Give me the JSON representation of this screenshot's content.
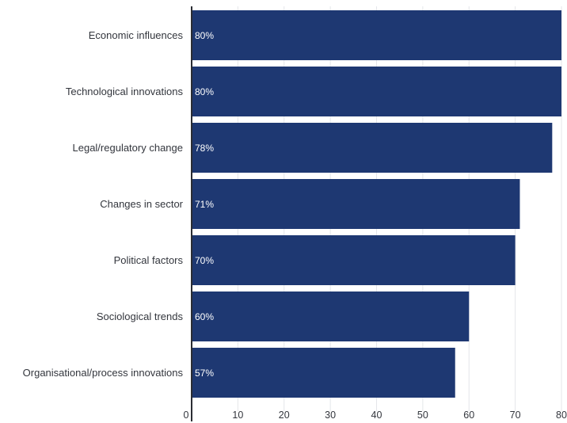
{
  "chart_data": {
    "type": "bar",
    "orientation": "horizontal",
    "categories": [
      "Economic influences",
      "Technological innovations",
      "Legal/regulatory change",
      "Changes in sector",
      "Political factors",
      "Sociological trends",
      "Organisational/process innovations"
    ],
    "values": [
      80,
      80,
      78,
      71,
      70,
      60,
      57
    ],
    "data_labels": [
      "80%",
      "80%",
      "78%",
      "71%",
      "70%",
      "60%",
      "57%"
    ],
    "x_ticks": [
      "0",
      "10",
      "20",
      "30",
      "40",
      "50",
      "60",
      "70",
      "80"
    ],
    "xlim": [
      0,
      80
    ],
    "grid": true,
    "legend": "none",
    "colors": {
      "bar": "#1e3872",
      "grid": "#e4e6ea",
      "axis": "#2b2d33",
      "label_text": "#33363d",
      "data_label_text": "#ffffff"
    }
  }
}
